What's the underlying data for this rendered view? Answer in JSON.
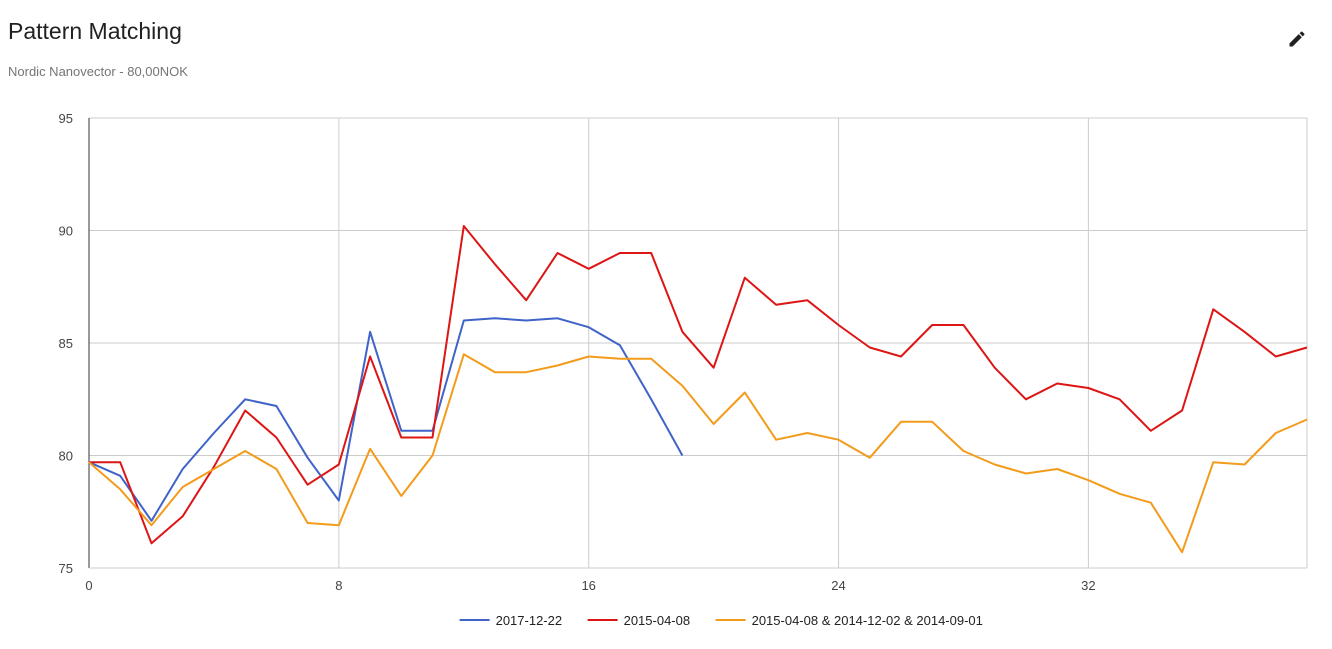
{
  "header": {
    "title": "Pattern Matching",
    "subtitle": "Nordic Nanovector - 80,00NOK",
    "edit_icon": "pencil-icon"
  },
  "chart_data": {
    "type": "line",
    "xlim": [
      0,
      39
    ],
    "ylim": [
      75,
      95
    ],
    "x_ticks": [
      0,
      8,
      16,
      24,
      32
    ],
    "y_ticks": [
      75,
      80,
      85,
      90,
      95
    ],
    "grid": true,
    "legend_position": "bottom",
    "series": [
      {
        "name": "2017-12-22",
        "color": "#3f63c8",
        "values": [
          79.7,
          79.1,
          77.1,
          79.4,
          81.0,
          82.5,
          82.2,
          79.9,
          78.0,
          85.5,
          81.1,
          81.1,
          86.0,
          86.1,
          86.0,
          86.1,
          85.7,
          84.9,
          82.5,
          80.0
        ]
      },
      {
        "name": "2015-04-08",
        "color": "#dd1515",
        "values": [
          79.7,
          79.7,
          76.1,
          77.3,
          79.5,
          82.0,
          80.8,
          78.7,
          79.6,
          84.4,
          80.8,
          80.8,
          90.2,
          88.5,
          86.9,
          89.0,
          88.3,
          89.0,
          89.0,
          85.5,
          83.9,
          87.9,
          86.7,
          86.9,
          85.8,
          84.8,
          84.4,
          85.8,
          85.8,
          83.9,
          82.5,
          83.2,
          83.0,
          82.5,
          81.1,
          82.0,
          86.5,
          85.5,
          84.4,
          84.8
        ]
      },
      {
        "name": "2015-04-08 & 2014-12-02 & 2014-09-01",
        "color": "#f39b1a",
        "values": [
          79.7,
          78.5,
          76.9,
          78.6,
          79.4,
          80.2,
          79.4,
          77.0,
          76.9,
          80.3,
          78.2,
          80.0,
          84.5,
          83.7,
          83.7,
          84.0,
          84.4,
          84.3,
          84.3,
          83.1,
          81.4,
          82.8,
          80.7,
          81.0,
          80.7,
          79.9,
          81.5,
          81.5,
          80.2,
          79.6,
          79.2,
          79.4,
          78.9,
          78.3,
          77.9,
          75.7,
          79.7,
          79.6,
          81.0,
          81.6
        ]
      }
    ]
  }
}
